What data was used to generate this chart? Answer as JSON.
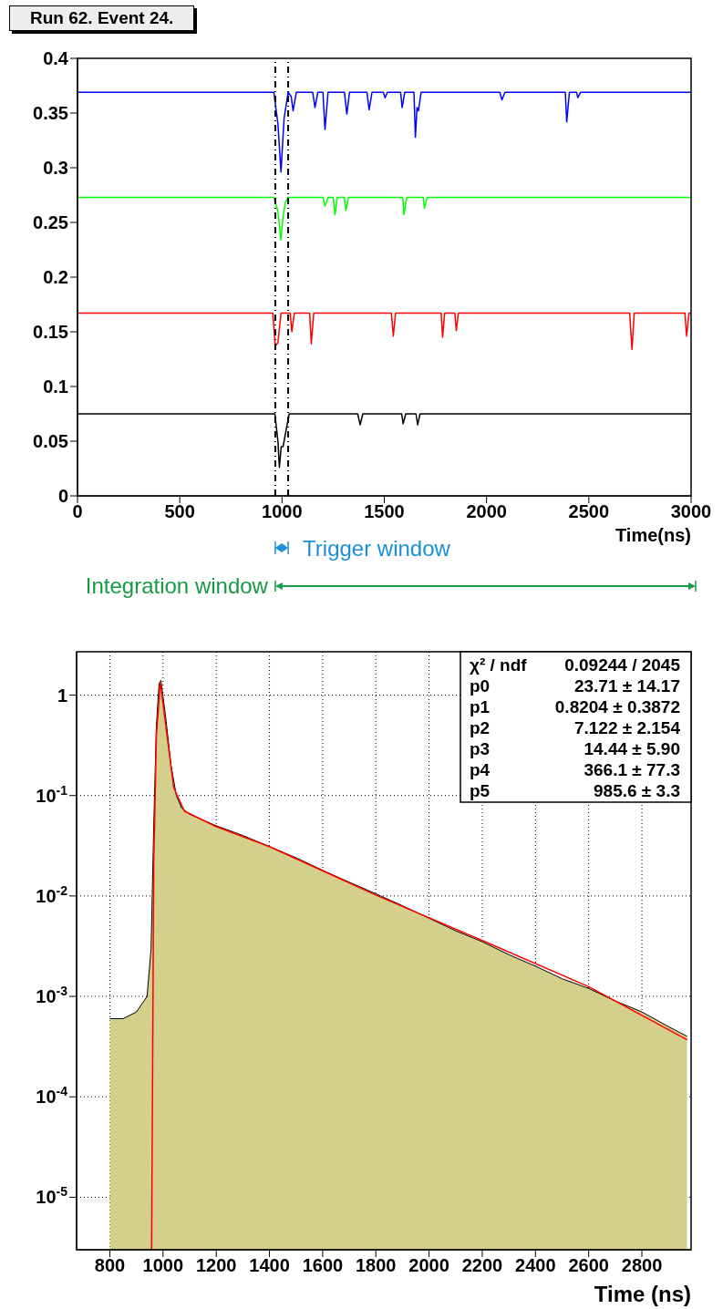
{
  "chart_data": [
    {
      "type": "line",
      "title": "Run 62. Event 24.",
      "xlabel": "Time(ns)",
      "xlim": [
        0,
        3000
      ],
      "xticks": [
        0,
        500,
        1000,
        1500,
        2000,
        2500,
        3000
      ],
      "ylim": [
        0,
        0.4
      ],
      "yticks": [
        0,
        0.05,
        0.1,
        0.15,
        0.2,
        0.25,
        0.3,
        0.35,
        0.4
      ],
      "grid": false,
      "series": [
        {
          "color": "#0000ff",
          "x": [
            0,
            300,
            600,
            960,
            980,
            995,
            1010,
            1030,
            1045,
            1054,
            1070,
            1150,
            1161,
            1175,
            1200,
            1210,
            1225,
            1305,
            1317,
            1330,
            1415,
            1426,
            1440,
            1495,
            1504,
            1515,
            1580,
            1587,
            1600,
            1645,
            1652,
            1660,
            1667,
            1680,
            2065,
            2075,
            2090,
            2385,
            2392,
            2405,
            2440,
            2446,
            2460,
            2700,
            3000
          ],
          "values": [
            0.369,
            0.369,
            0.369,
            0.369,
            0.34,
            0.296,
            0.345,
            0.369,
            0.365,
            0.352,
            0.369,
            0.369,
            0.355,
            0.369,
            0.369,
            0.335,
            0.369,
            0.369,
            0.349,
            0.369,
            0.369,
            0.353,
            0.369,
            0.369,
            0.364,
            0.369,
            0.369,
            0.355,
            0.369,
            0.369,
            0.328,
            0.355,
            0.352,
            0.369,
            0.369,
            0.362,
            0.369,
            0.369,
            0.342,
            0.369,
            0.369,
            0.364,
            0.369,
            0.369,
            0.369
          ]
        },
        {
          "color": "#00ff00",
          "x": [
            0,
            300,
            600,
            960,
            980,
            994,
            1005,
            1016,
            1030,
            1200,
            1210,
            1225,
            1250,
            1259,
            1270,
            1305,
            1312,
            1325,
            1590,
            1596,
            1610,
            1690,
            1696,
            1710,
            2200,
            2600,
            3000
          ],
          "values": [
            0.273,
            0.273,
            0.273,
            0.273,
            0.26,
            0.234,
            0.255,
            0.268,
            0.273,
            0.273,
            0.265,
            0.273,
            0.273,
            0.257,
            0.273,
            0.273,
            0.261,
            0.273,
            0.273,
            0.257,
            0.273,
            0.273,
            0.263,
            0.273,
            0.273,
            0.273,
            0.273
          ]
        },
        {
          "color": "#ff0000",
          "x": [
            0,
            300,
            600,
            955,
            967,
            980,
            995,
            1040,
            1048,
            1060,
            1135,
            1143,
            1155,
            1535,
            1544,
            1555,
            1778,
            1785,
            1795,
            1845,
            1852,
            1862,
            2200,
            2700,
            2711,
            2722,
            2970,
            2978,
            2990,
            3000
          ],
          "values": [
            0.167,
            0.167,
            0.167,
            0.167,
            0.137,
            0.14,
            0.167,
            0.167,
            0.15,
            0.167,
            0.167,
            0.139,
            0.167,
            0.167,
            0.146,
            0.167,
            0.167,
            0.145,
            0.167,
            0.167,
            0.151,
            0.167,
            0.167,
            0.167,
            0.134,
            0.167,
            0.167,
            0.146,
            0.167,
            0.167
          ]
        },
        {
          "color": "#000000",
          "x": [
            0,
            300,
            600,
            965,
            980,
            987,
            996,
            1005,
            1020,
            1035,
            1370,
            1382,
            1395,
            1585,
            1592,
            1605,
            1655,
            1663,
            1675,
            2200,
            2600,
            3000
          ],
          "values": [
            0.075,
            0.075,
            0.075,
            0.075,
            0.05,
            0.026,
            0.045,
            0.045,
            0.06,
            0.075,
            0.075,
            0.065,
            0.075,
            0.075,
            0.066,
            0.075,
            0.075,
            0.065,
            0.075,
            0.075,
            0.075,
            0.075
          ]
        }
      ],
      "ref_lines": [
        {
          "axis": "x",
          "value": 967,
          "line_style": "dashed",
          "color": "#000000"
        },
        {
          "axis": "x",
          "value": 1030,
          "line_style": "dashed",
          "color": "#000000"
        }
      ],
      "annotations": [
        "Trigger window",
        "Integration window"
      ]
    },
    {
      "type": "area",
      "xlabel": "Time (ns)",
      "xlim": [
        675,
        2985
      ],
      "xticks": [
        800,
        1000,
        1200,
        1400,
        1600,
        1800,
        2000,
        2200,
        2400,
        2600,
        2800
      ],
      "ylim": [
        3e-06,
        2.7
      ],
      "log": "y",
      "grid": true,
      "yticks": [
        {
          "value": 1e-05,
          "label": "10$^{-5}$"
        },
        {
          "value": 0.0001,
          "label": "10$^{-4}$"
        },
        {
          "value": 0.001,
          "label": "10$^{-3}$"
        },
        {
          "value": 0.01,
          "label": "10$^{-2}$"
        },
        {
          "value": 0.1,
          "label": "10$^{-1}$"
        },
        1
      ],
      "series": [
        {
          "color": "#d4cf8b",
          "x": [
            800,
            850,
            900,
            940,
            955,
            965,
            975,
            985,
            992,
            1010,
            1030,
            1050,
            1070,
            1100,
            1200,
            1300,
            1400,
            1500,
            1600,
            1700,
            1800,
            1900,
            2000,
            2100,
            2200,
            2300,
            2400,
            2500,
            2600,
            2700,
            2800,
            2900,
            2970
          ],
          "values": [
            0.0006,
            0.0006,
            0.0007,
            0.001,
            0.003,
            0.05,
            0.5,
            1.3,
            1.4,
            0.6,
            0.2,
            0.1,
            0.075,
            0.065,
            0.05,
            0.04,
            0.031,
            0.024,
            0.018,
            0.0137,
            0.0105,
            0.008,
            0.006,
            0.0045,
            0.0035,
            0.0026,
            0.002,
            0.0015,
            0.0012,
            0.0009,
            0.0007,
            0.0005,
            0.0004
          ]
        },
        {
          "type": "line",
          "color": "#ff0000",
          "x": [
            957,
            965,
            975,
            990,
            1010,
            1040,
            1080,
            1200,
            1400,
            1800,
            2200,
            2600,
            2970
          ],
          "values": [
            3e-06,
            0.02,
            0.4,
            1.35,
            0.5,
            0.12,
            0.07,
            0.049,
            0.031,
            0.0102,
            0.0036,
            0.00125,
            0.00037
          ]
        }
      ],
      "annotations": [
        "χ² / ndf  0.09244 / 2045",
        "p0  23.71 ± 14.17",
        "p1  0.8204 ± 0.3872",
        "p2  7.122 ± 2.154",
        "p3  14.44 ± 5.90",
        "p4  366.1 ± 77.3",
        "p5  985.6 ± 3.3"
      ]
    }
  ]
}
